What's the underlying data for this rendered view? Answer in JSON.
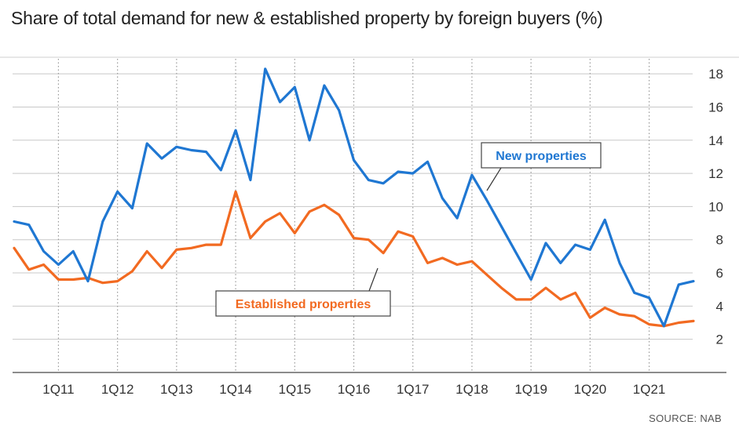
{
  "chart_data": {
    "type": "line",
    "title": "Share of total demand for new & established property by foreign buyers (%)",
    "xlabel": "",
    "ylabel": "",
    "ylim": [
      0,
      19
    ],
    "yticks": [
      2,
      4,
      6,
      8,
      10,
      12,
      14,
      16,
      18
    ],
    "xticks": [
      "1Q11",
      "1Q12",
      "1Q13",
      "1Q14",
      "1Q15",
      "1Q16",
      "1Q17",
      "1Q18",
      "1Q19",
      "1Q20",
      "1Q21"
    ],
    "x": [
      "2Q10",
      "3Q10",
      "4Q10",
      "1Q11",
      "2Q11",
      "3Q11",
      "4Q11",
      "1Q12",
      "2Q12",
      "3Q12",
      "4Q12",
      "1Q13",
      "2Q13",
      "3Q13",
      "4Q13",
      "1Q14",
      "2Q14",
      "3Q14",
      "4Q14",
      "1Q15",
      "2Q15",
      "3Q15",
      "4Q15",
      "1Q16",
      "2Q16",
      "3Q16",
      "4Q16",
      "1Q17",
      "2Q17",
      "3Q17",
      "4Q17",
      "1Q18",
      "2Q18",
      "3Q18",
      "4Q18",
      "1Q19",
      "2Q19",
      "3Q19",
      "4Q19",
      "1Q20",
      "2Q20",
      "3Q20",
      "4Q20",
      "1Q21",
      "2Q21",
      "3Q21",
      "4Q21"
    ],
    "series": [
      {
        "name": "New properties",
        "color": "#1f77d2",
        "values": [
          9.1,
          8.9,
          7.3,
          6.5,
          7.3,
          5.5,
          9.1,
          10.9,
          9.9,
          13.8,
          12.9,
          13.6,
          13.4,
          13.3,
          12.2,
          14.6,
          11.6,
          18.3,
          16.3,
          17.2,
          14.0,
          17.3,
          15.8,
          12.8,
          11.6,
          11.4,
          12.1,
          12.0,
          12.7,
          10.5,
          9.3,
          11.9,
          10.4,
          8.8,
          7.2,
          5.6,
          7.8,
          6.6,
          7.7,
          7.4,
          9.2,
          6.6,
          4.8,
          4.5,
          2.8,
          5.3,
          5.5
        ]
      },
      {
        "name": "Established properties",
        "color": "#f26a21",
        "values": [
          7.5,
          6.2,
          6.5,
          5.6,
          5.6,
          5.7,
          5.4,
          5.5,
          6.1,
          7.3,
          6.3,
          7.4,
          7.5,
          7.7,
          7.7,
          10.9,
          8.1,
          9.1,
          9.6,
          8.4,
          9.7,
          10.1,
          9.5,
          8.1,
          8.0,
          7.2,
          8.5,
          8.2,
          6.6,
          6.9,
          6.5,
          6.7,
          5.9,
          5.1,
          4.4,
          4.4,
          5.1,
          4.4,
          4.8,
          3.3,
          3.9,
          3.5,
          3.4,
          2.9,
          2.8,
          3.0,
          3.1
        ]
      }
    ],
    "annotations": [
      {
        "text": "New properties",
        "series": "New properties"
      },
      {
        "text": "Established properties",
        "series": "Established properties"
      }
    ]
  },
  "source": "SOURCE: NAB"
}
